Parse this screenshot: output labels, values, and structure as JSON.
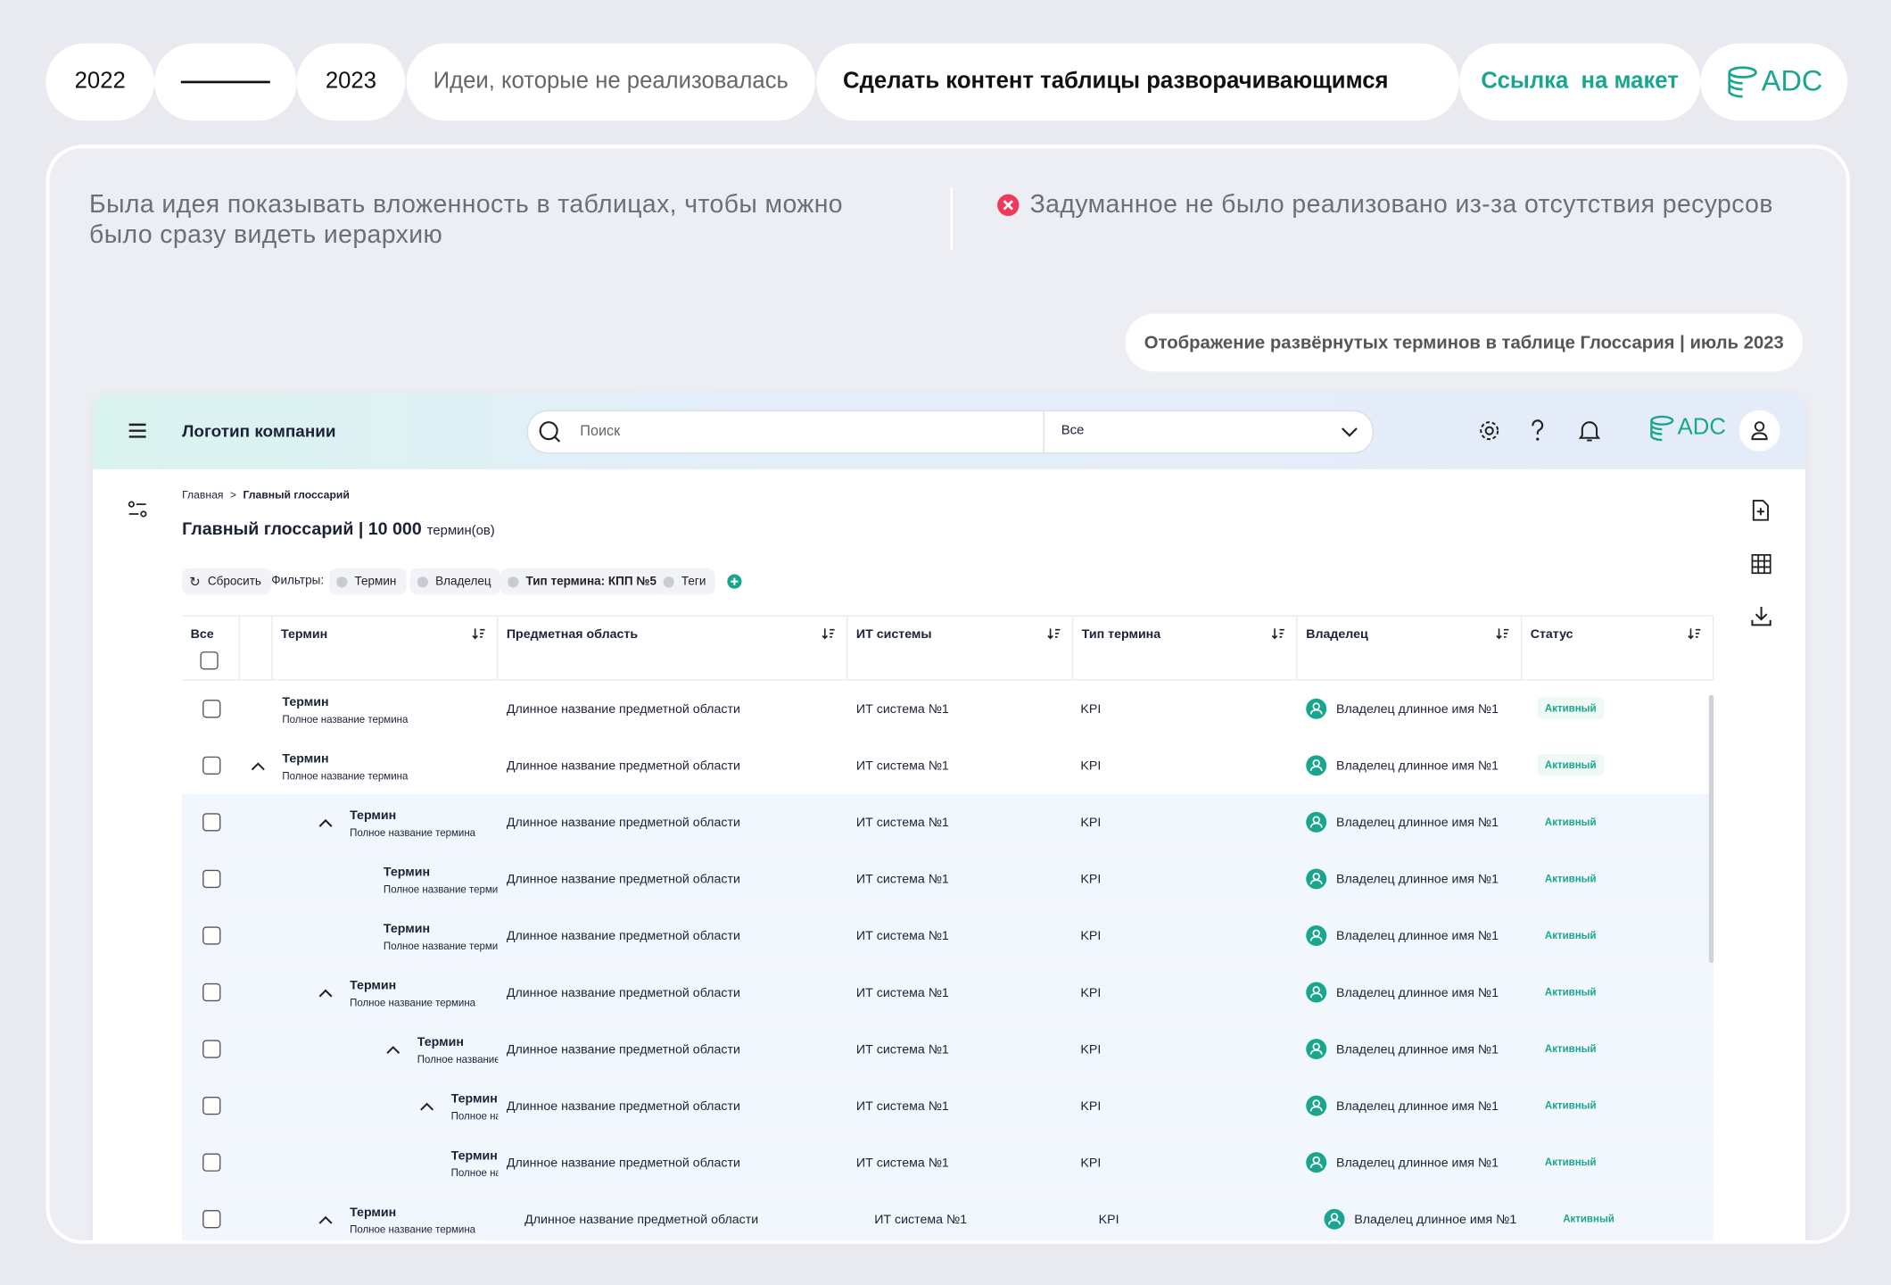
{
  "header": {
    "year_start": "2022",
    "year_end": "2023",
    "category": "Идеи, которые не реализовалась",
    "title": "Сделать контент таблицы разворачивающимся",
    "link": "Ссылка  на макет",
    "logo": "ADC"
  },
  "description": "Была идея показывать вложенность в таблицах, чтобы можно было сразу видеть иерархию",
  "status_note": "Задуманное не было реализовано из-за отсутствия ресурсов",
  "caption": "Отображение развёрнутых терминов в таблице Глоссария | июль 2023",
  "app": {
    "company": "Логотип компании",
    "search_placeholder": "Поиск",
    "search_scope": "Все",
    "logo": "ADC",
    "breadcrumbs": [
      "Главная",
      "Главный глоссарий"
    ],
    "breadcrumb_separator": ">",
    "page_title": "Главный глоссарий | 10 000",
    "page_title_unit": "термин(ов)",
    "filters": {
      "reset": "Сбросить",
      "label": "Фильтры:",
      "chips": [
        "Термин",
        "Владелец",
        "Тип термина: КПП №5",
        "Теги"
      ]
    },
    "table": {
      "columns": [
        "Все",
        "Термин",
        "Предметная область",
        "ИТ системы",
        "Тип термина",
        "Владелец",
        "Статус"
      ],
      "rows": [
        {
          "indent": 0,
          "expandable": false,
          "nested": false,
          "term": "Термин",
          "full_name": "Полное название термина",
          "area": "Длинное название предметной области",
          "system": "ИТ система №1",
          "type": "KPI",
          "owner": "Владелец длинное имя №1",
          "status": "Активный"
        },
        {
          "indent": 0,
          "expandable": true,
          "nested": false,
          "term": "Термин",
          "full_name": "Полное название термина",
          "area": "Длинное название предметной области",
          "system": "ИТ система №1",
          "type": "KPI",
          "owner": "Владелец длинное имя №1",
          "status": "Активный"
        },
        {
          "indent": 2,
          "expandable": true,
          "nested": true,
          "term": "Термин",
          "full_name": "Полное название термина",
          "area": "Длинное название предметной области",
          "system": "ИТ система №1",
          "type": "KPI",
          "owner": "Владелец длинное имя №1",
          "status": "Активный"
        },
        {
          "indent": 3,
          "expandable": false,
          "nested": true,
          "term": "Термин",
          "full_name": "Полное название термина",
          "area": "Длинное название предметной области",
          "system": "ИТ система №1",
          "type": "KPI",
          "owner": "Владелец длинное имя №1",
          "status": "Активный"
        },
        {
          "indent": 3,
          "expandable": false,
          "nested": true,
          "term": "Термин",
          "full_name": "Полное название термина",
          "area": "Длинное название предметной области",
          "system": "ИТ система №1",
          "type": "KPI",
          "owner": "Владелец длинное имя №1",
          "status": "Активный"
        },
        {
          "indent": 2,
          "expandable": true,
          "nested": true,
          "term": "Термин",
          "full_name": "Полное название термина",
          "area": "Длинное название предметной области",
          "system": "ИТ система №1",
          "type": "KPI",
          "owner": "Владелец длинное имя №1",
          "status": "Активный"
        },
        {
          "indent": 4,
          "expandable": true,
          "nested": true,
          "term": "Термин",
          "full_name": "Полное название термина",
          "area": "Длинное название предметной области",
          "system": "ИТ система №1",
          "type": "KPI",
          "owner": "Владелец длинное имя №1",
          "status": "Активный"
        },
        {
          "indent": 5,
          "expandable": true,
          "nested": true,
          "term": "Термин",
          "full_name": "Полное название термина",
          "area": "Длинное название предметной области",
          "system": "ИТ система №1",
          "type": "KPI",
          "owner": "Владелец длинное имя №1",
          "status": "Активный"
        },
        {
          "indent": 5,
          "expandable": false,
          "nested": true,
          "term": "Термин",
          "full_name": "Полное название термина",
          "area": "Длинное название предметной области",
          "system": "ИТ система №1",
          "type": "KPI",
          "owner": "Владелец длинное имя №1",
          "status": "Активный"
        },
        {
          "indent": 2,
          "expandable": true,
          "nested": true,
          "term": "Термин",
          "full_name": "Полное название термина",
          "area": "Длинное название предметной области",
          "system": "ИТ система №1",
          "type": "KPI",
          "owner": "Владелец длинное имя №1",
          "status": "Активный"
        }
      ]
    }
  }
}
